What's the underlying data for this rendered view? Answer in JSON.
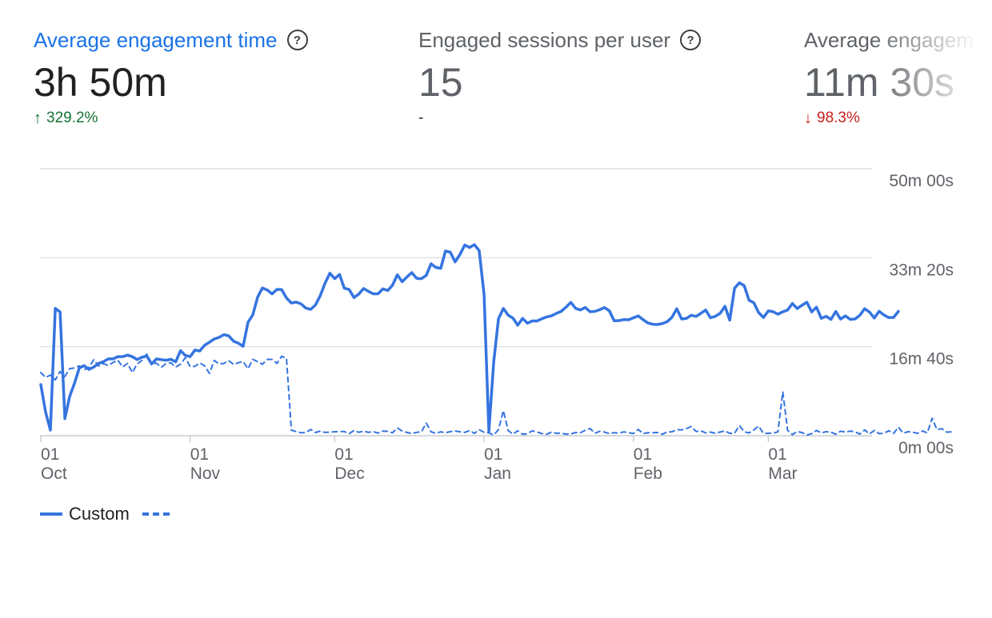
{
  "scorecards": [
    {
      "title": "Average engagement time",
      "value": "3h 50m",
      "delta_arrow": "↑",
      "delta": "329.2%",
      "trend": "up",
      "active": true
    },
    {
      "title": "Engaged sessions per user",
      "value": "15",
      "delta_arrow": "",
      "delta": "-",
      "trend": "neutral",
      "active": false
    },
    {
      "title": "Average engagem",
      "value": "11m 30s",
      "delta_arrow": "↓",
      "delta": "98.3%",
      "trend": "down",
      "active": false
    }
  ],
  "help_icon_glyph": "?",
  "legend": {
    "series_label": "Custom"
  },
  "colors": {
    "series": "#3574e0",
    "up": "#137333",
    "down": "#c5221f",
    "accent": "#1a73e8"
  },
  "chart_data": {
    "type": "line",
    "x_start": "Oct 01",
    "x_interval": "day",
    "y_unit": "seconds",
    "ylim": [
      0,
      3000
    ],
    "y_ticks": [
      {
        "value": 0,
        "label": "0m 00s"
      },
      {
        "value": 1000,
        "label": "16m 40s"
      },
      {
        "value": 2000,
        "label": "33m 20s"
      },
      {
        "value": 3000,
        "label": "50m 00s"
      }
    ],
    "x_ticks": [
      {
        "day": "Oct 01",
        "label_top": "01",
        "label_bottom": "Oct"
      },
      {
        "day": "Nov 01",
        "label_top": "01",
        "label_bottom": "Nov"
      },
      {
        "day": "Dec 01",
        "label_top": "01",
        "label_bottom": "Dec"
      },
      {
        "day": "Jan 01",
        "label_top": "01",
        "label_bottom": "Jan"
      },
      {
        "day": "Feb 01",
        "label_top": "01",
        "label_bottom": "Feb"
      },
      {
        "day": "Mar 01",
        "label_top": "01",
        "label_bottom": "Mar"
      }
    ],
    "grid": true,
    "legend_position": "bottom-left",
    "series": [
      {
        "name": "Custom",
        "style": "solid",
        "values": [
          575,
          265,
          63,
          1430,
          1390,
          192,
          442,
          592,
          763,
          787,
          745,
          772,
          813,
          832,
          863,
          863,
          888,
          888,
          905,
          888,
          855,
          882,
          896,
          807,
          862,
          855,
          848,
          859,
          830,
          956,
          902,
          888,
          963,
          952,
          1018,
          1050,
          1087,
          1105,
          1135,
          1122,
          1063,
          1040,
          1004,
          1274,
          1358,
          1556,
          1660,
          1637,
          1593,
          1644,
          1642,
          1548,
          1491,
          1501,
          1482,
          1434,
          1419,
          1469,
          1574,
          1713,
          1826,
          1764,
          1812,
          1657,
          1643,
          1552,
          1592,
          1654,
          1622,
          1594,
          1594,
          1650,
          1631,
          1690,
          1807,
          1730,
          1784,
          1832,
          1769,
          1764,
          1802,
          1931,
          1891,
          1881,
          2076,
          2061,
          1953,
          2037,
          2143,
          2114,
          2147,
          2078,
          1585,
          49,
          826,
          1314,
          1430,
          1354,
          1321,
          1241,
          1319,
          1264,
          1290,
          1289,
          1314,
          1335,
          1346,
          1374,
          1397,
          1443,
          1498,
          1431,
          1413,
          1441,
          1393,
          1397,
          1416,
          1440,
          1403,
          1291,
          1293,
          1304,
          1302,
          1325,
          1346,
          1304,
          1267,
          1252,
          1249,
          1260,
          1281,
          1330,
          1426,
          1311,
          1318,
          1354,
          1340,
          1375,
          1412,
          1325,
          1341,
          1375,
          1454,
          1298,
          1658,
          1718,
          1685,
          1522,
          1494,
          1383,
          1328,
          1402,
          1393,
          1365,
          1392,
          1412,
          1486,
          1429,
          1467,
          1500,
          1390,
          1444,
          1319,
          1342,
          1307,
          1396,
          1310,
          1346,
          1307,
          1311,
          1353,
          1427,
          1389,
          1322,
          1398,
          1356,
          1327,
          1329,
          1397
        ]
      },
      {
        "name": "",
        "style": "dashed",
        "values": [
          710,
          655,
          682,
          628,
          720,
          666,
          754,
          762,
          784,
          741,
          768,
          854,
          783,
          810,
          789,
          824,
          848,
          772,
          814,
          709,
          806,
          847,
          917,
          813,
          815,
          768,
          811,
          819,
          772,
          804,
          877,
          776,
          780,
          818,
          785,
          700,
          846,
          806,
          813,
          843,
          801,
          820,
          834,
          752,
          858,
          833,
          803,
          858,
          858,
          812,
          893,
          871,
          62,
          47,
          33,
          35,
          70,
          36,
          52,
          37,
          40,
          44,
          48,
          47,
          23,
          58,
          39,
          51,
          38,
          46,
          30,
          52,
          49,
          33,
          88,
          52,
          37,
          24,
          38,
          44,
          143,
          44,
          26,
          44,
          33,
          46,
          54,
          44,
          38,
          58,
          27,
          67,
          39,
          31,
          9,
          68,
          282,
          58,
          17,
          56,
          17,
          22,
          56,
          41,
          24,
          15,
          41,
          27,
          30,
          17,
          22,
          35,
          33,
          61,
          81,
          28,
          49,
          41,
          23,
          34,
          30,
          43,
          35,
          24,
          70,
          25,
          33,
          34,
          36,
          16,
          42,
          44,
          67,
          66,
          79,
          104,
          48,
          55,
          32,
          40,
          28,
          41,
          54,
          27,
          28,
          114,
          44,
          31,
          66,
          108,
          26,
          27,
          29,
          43,
          493,
          61,
          12,
          48,
          35,
          7,
          23,
          59,
          33,
          45,
          40,
          16,
          51,
          40,
          52,
          44,
          18,
          66,
          20,
          59,
          23,
          28,
          56,
          26,
          97,
          29,
          45,
          39,
          27,
          53,
          32,
          196,
          68,
          80,
          40,
          43
        ]
      }
    ]
  }
}
